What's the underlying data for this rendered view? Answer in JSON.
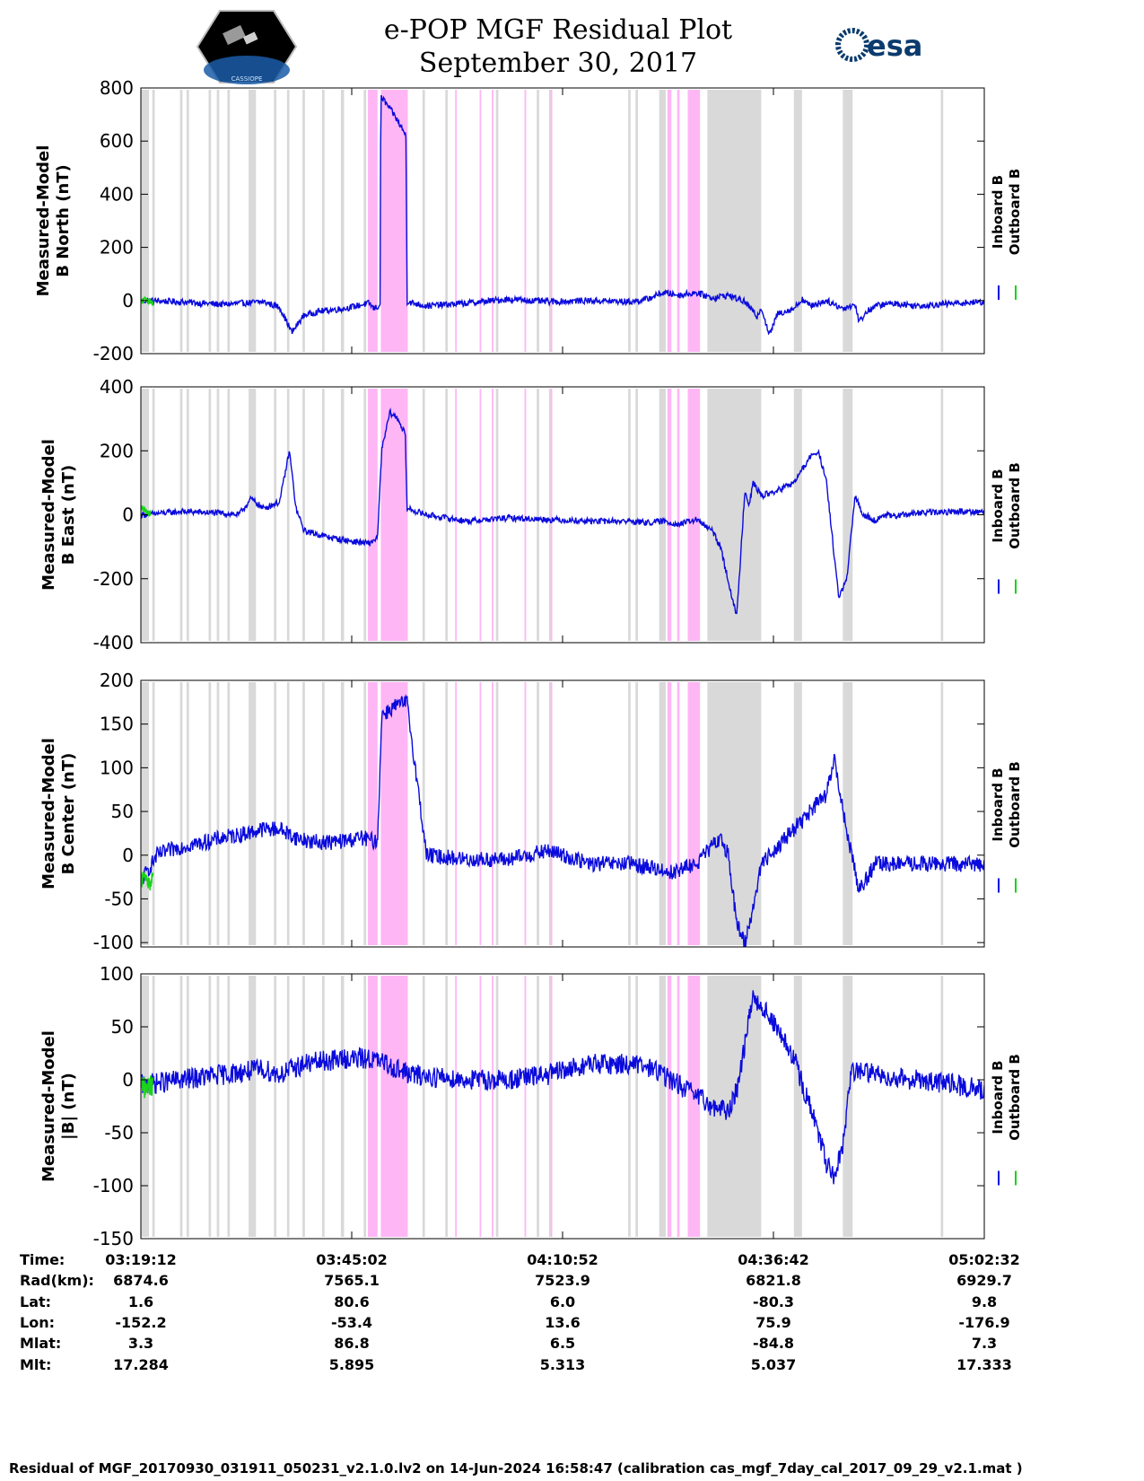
{
  "figure": {
    "title_line1": "e-POP MGF Residual Plot",
    "title_line2": "September 30, 2017",
    "logo_left_text": "CASSIOPE",
    "logo_right_text": "esa",
    "footer": "Residual of MGF_20170930_031911_050231_v2.1.0.lv2 on 14-Jun-2024 16:58:47 (calibration cas_mgf_7day_cal_2017_09_29_v2.1.mat )",
    "colors": {
      "inboard": "#0a0adc",
      "outboard": "#19d219",
      "gray_band": "#d9d9d9",
      "pink_band": "#ffb6f5"
    },
    "legend": {
      "inboard": "Inboard B",
      "outboard": "Outboard B"
    }
  },
  "time_table": {
    "row_labels": [
      "Time:",
      "Rad(km):",
      "Lat:",
      "Lon:",
      "Mlat:",
      "Mlt:"
    ],
    "columns": [
      {
        "Time": "03:19:12",
        "Rad": "6874.6",
        "Lat": "1.6",
        "Lon": "-152.2",
        "Mlat": "3.3",
        "Mlt": "17.284"
      },
      {
        "Time": "03:45:02",
        "Rad": "7565.1",
        "Lat": "80.6",
        "Lon": "-53.4",
        "Mlat": "86.8",
        "Mlt": "5.895"
      },
      {
        "Time": "04:10:52",
        "Rad": "7523.9",
        "Lat": "6.0",
        "Lon": "13.6",
        "Mlat": "6.5",
        "Mlt": "5.313"
      },
      {
        "Time": "04:36:42",
        "Rad": "6821.8",
        "Lat": "-80.3",
        "Lon": "75.9",
        "Mlat": "-84.8",
        "Mlt": "5.037"
      },
      {
        "Time": "05:02:32",
        "Rad": "6929.7",
        "Lat": "9.8",
        "Lon": "-176.9",
        "Mlat": "7.3",
        "Mlt": "17.333"
      }
    ]
  },
  "chart_data": [
    {
      "type": "line",
      "ylabel_line1": "Measured-Model",
      "ylabel_line2": "B North (nT)",
      "ylim": [
        -200,
        800
      ],
      "yticks": [
        -200,
        0,
        200,
        400,
        600,
        800
      ],
      "xlim_minutes": [
        0,
        103.33
      ],
      "x_ticks": [
        "03:19:12",
        "03:45:02",
        "04:10:52",
        "04:36:42",
        "05:02:32"
      ],
      "series": [
        {
          "name": "Inboard B",
          "x": [
            0,
            5,
            10,
            15,
            17,
            18.5,
            20,
            22,
            25,
            28,
            28.5,
            29.3,
            29.4,
            31,
            32.5,
            32.6,
            35,
            40,
            45,
            50,
            55,
            60,
            62,
            64,
            66,
            68,
            70,
            72,
            74,
            75.5,
            76,
            77,
            78,
            80,
            81,
            82,
            84,
            86,
            87.5,
            88,
            89,
            90,
            92,
            95,
            100,
            103.33
          ],
          "values": [
            0,
            -5,
            -15,
            -5,
            -25,
            -120,
            -55,
            -40,
            -30,
            -10,
            -30,
            -20,
            770,
            700,
            620,
            -5,
            -20,
            -10,
            5,
            -5,
            0,
            -5,
            5,
            30,
            20,
            30,
            10,
            20,
            -5,
            -60,
            -25,
            -130,
            -50,
            -30,
            5,
            -20,
            0,
            -30,
            -15,
            -80,
            -40,
            -20,
            -10,
            -20,
            -10,
            -5
          ]
        },
        {
          "name": "Outboard B",
          "x": [
            0,
            0.5,
            1,
            1.5
          ],
          "values": [
            -5,
            5,
            0,
            -8
          ]
        }
      ],
      "gray_intervals_minutes": [
        [
          0,
          1
        ],
        [
          1.4,
          1.7
        ],
        [
          4.8,
          5.1
        ],
        [
          5.6,
          5.9
        ],
        [
          8.3,
          8.6
        ],
        [
          9.3,
          9.6
        ],
        [
          10.6,
          10.9
        ],
        [
          13.2,
          14.1
        ],
        [
          16.3,
          16.6
        ],
        [
          17.9,
          18.2
        ],
        [
          19.8,
          20.1
        ],
        [
          22.2,
          22.5
        ],
        [
          24.5,
          24.9
        ],
        [
          27.3,
          27.6
        ],
        [
          31.2,
          31.5
        ],
        [
          34.5,
          34.8
        ],
        [
          37.3,
          37.6
        ],
        [
          43.5,
          43.8
        ],
        [
          48.5,
          48.8
        ],
        [
          50,
          50.3
        ],
        [
          59.7,
          60
        ],
        [
          60.6,
          60.9
        ],
        [
          63.5,
          64.3
        ],
        [
          69.4,
          75.9
        ],
        [
          73.5,
          76
        ],
        [
          80,
          81
        ],
        [
          86,
          87.2
        ],
        [
          98,
          98.3
        ]
      ],
      "pink_intervals_minutes": [
        [
          27.8,
          29
        ],
        [
          29.4,
          32.7
        ],
        [
          38.5,
          38.7
        ],
        [
          41.5,
          41.7
        ],
        [
          43,
          43.2
        ],
        [
          47,
          47.2
        ],
        [
          50.2,
          50.4
        ],
        [
          64.5,
          65
        ],
        [
          65.7,
          66
        ],
        [
          67,
          68.5
        ]
      ]
    },
    {
      "type": "line",
      "ylabel_line1": "Measured-Model",
      "ylabel_line2": "B East (nT)",
      "ylim": [
        -400,
        400
      ],
      "yticks": [
        -400,
        -200,
        0,
        200,
        400
      ],
      "xlim_minutes": [
        0,
        103.33
      ],
      "x_ticks": [
        "03:19:12",
        "03:45:02",
        "04:10:52",
        "04:36:42",
        "05:02:32"
      ],
      "series": [
        {
          "name": "Inboard B",
          "x": [
            0,
            5,
            10,
            12,
            13.5,
            15,
            17,
            18.2,
            19,
            20,
            23,
            25,
            28,
            29,
            29.5,
            30.5,
            31.5,
            32.4,
            32.6,
            35,
            40,
            45,
            50,
            55,
            60,
            62,
            64,
            66,
            68,
            70,
            71,
            73,
            74,
            74.5,
            75,
            76,
            77.5,
            80,
            82,
            83,
            84,
            85.5,
            86.5,
            87.5,
            88.5,
            89.5,
            90,
            91,
            92,
            95,
            100,
            103.33
          ],
          "values": [
            0,
            10,
            5,
            0,
            50,
            20,
            40,
            200,
            20,
            -50,
            -70,
            -80,
            -90,
            -70,
            200,
            320,
            300,
            250,
            20,
            0,
            -20,
            -10,
            -15,
            -20,
            -20,
            -25,
            -20,
            -30,
            -15,
            -50,
            -100,
            -320,
            80,
            30,
            100,
            60,
            70,
            100,
            180,
            200,
            100,
            -260,
            -200,
            60,
            0,
            -10,
            -20,
            0,
            -5,
            5,
            10,
            10
          ]
        },
        {
          "name": "Outboard B",
          "x": [
            0,
            0.6,
            1.2
          ],
          "values": [
            25,
            10,
            0
          ]
        }
      ],
      "gray_intervals_minutes": [
        [
          0,
          1
        ],
        [
          1.4,
          1.7
        ],
        [
          4.8,
          5.1
        ],
        [
          5.6,
          5.9
        ],
        [
          8.3,
          8.6
        ],
        [
          9.3,
          9.6
        ],
        [
          10.6,
          10.9
        ],
        [
          13.2,
          14.1
        ],
        [
          16.3,
          16.6
        ],
        [
          17.9,
          18.2
        ],
        [
          19.8,
          20.1
        ],
        [
          22.2,
          22.5
        ],
        [
          24.5,
          24.9
        ],
        [
          27.3,
          27.6
        ],
        [
          31.2,
          31.5
        ],
        [
          34.5,
          34.8
        ],
        [
          37.3,
          37.6
        ],
        [
          43.5,
          43.8
        ],
        [
          48.5,
          48.8
        ],
        [
          50,
          50.3
        ],
        [
          59.7,
          60
        ],
        [
          60.6,
          60.9
        ],
        [
          63.5,
          64.3
        ],
        [
          69.4,
          75.9
        ],
        [
          73.5,
          76
        ],
        [
          80,
          81
        ],
        [
          86,
          87.2
        ],
        [
          98,
          98.3
        ]
      ],
      "pink_intervals_minutes": [
        [
          27.8,
          29
        ],
        [
          29.4,
          32.7
        ],
        [
          38.5,
          38.7
        ],
        [
          41.5,
          41.7
        ],
        [
          43,
          43.2
        ],
        [
          47,
          47.2
        ],
        [
          50.2,
          50.4
        ],
        [
          64.5,
          65
        ],
        [
          65.7,
          66
        ],
        [
          67,
          68.5
        ]
      ]
    },
    {
      "type": "line",
      "ylabel_line1": "Measured-Model",
      "ylabel_line2": "B Center (nT)",
      "ylim": [
        -105,
        200
      ],
      "yticks": [
        -100,
        -50,
        0,
        50,
        100,
        150,
        200
      ],
      "xlim_minutes": [
        0,
        103.33
      ],
      "x_ticks": [
        "03:19:12",
        "03:45:02",
        "04:10:52",
        "04:36:42",
        "05:02:32"
      ],
      "series": [
        {
          "name": "Inboard B",
          "x": [
            0,
            2,
            5,
            8,
            10,
            13,
            15,
            17,
            19,
            21,
            24,
            27,
            29,
            29.5,
            31,
            32.6,
            35,
            40,
            45,
            50,
            55,
            60,
            63,
            65,
            68,
            70,
            71,
            72,
            73,
            74,
            75,
            76,
            78,
            80,
            82,
            84,
            85,
            86,
            88,
            90,
            92,
            95,
            100,
            103.33
          ],
          "values": [
            -30,
            0,
            10,
            15,
            20,
            25,
            30,
            30,
            20,
            15,
            15,
            20,
            15,
            160,
            170,
            175,
            0,
            -5,
            -5,
            5,
            -10,
            -10,
            -15,
            -20,
            -10,
            10,
            20,
            0,
            -80,
            -100,
            -60,
            -10,
            10,
            30,
            50,
            70,
            110,
            50,
            -40,
            -10,
            -10,
            -10,
            -10,
            -10
          ]
        },
        {
          "name": "Outboard B",
          "x": [
            0,
            0.5,
            1,
            1.5
          ],
          "values": [
            -30,
            -20,
            -35,
            -25
          ]
        }
      ],
      "gray_intervals_minutes": [
        [
          0,
          1
        ],
        [
          1.4,
          1.7
        ],
        [
          4.8,
          5.1
        ],
        [
          5.6,
          5.9
        ],
        [
          8.3,
          8.6
        ],
        [
          9.3,
          9.6
        ],
        [
          10.6,
          10.9
        ],
        [
          13.2,
          14.1
        ],
        [
          16.3,
          16.6
        ],
        [
          17.9,
          18.2
        ],
        [
          19.8,
          20.1
        ],
        [
          22.2,
          22.5
        ],
        [
          24.5,
          24.9
        ],
        [
          27.3,
          27.6
        ],
        [
          31.2,
          31.5
        ],
        [
          34.5,
          34.8
        ],
        [
          37.3,
          37.6
        ],
        [
          43.5,
          43.8
        ],
        [
          48.5,
          48.8
        ],
        [
          50,
          50.3
        ],
        [
          59.7,
          60
        ],
        [
          60.6,
          60.9
        ],
        [
          63.5,
          64.3
        ],
        [
          69.4,
          75.9
        ],
        [
          73.5,
          76
        ],
        [
          80,
          81
        ],
        [
          86,
          87.2
        ],
        [
          98,
          98.3
        ]
      ],
      "pink_intervals_minutes": [
        [
          27.8,
          29
        ],
        [
          29.4,
          32.7
        ],
        [
          38.5,
          38.7
        ],
        [
          41.5,
          41.7
        ],
        [
          43,
          43.2
        ],
        [
          47,
          47.2
        ],
        [
          50.2,
          50.4
        ],
        [
          64.5,
          65
        ],
        [
          65.7,
          66
        ],
        [
          67,
          68.5
        ]
      ]
    },
    {
      "type": "line",
      "ylabel_line1": "Measured-Model",
      "ylabel_line2": "|B| (nT)",
      "ylim": [
        -150,
        100
      ],
      "yticks": [
        -150,
        -100,
        -50,
        0,
        50,
        100
      ],
      "xlim_minutes": [
        0,
        103.33
      ],
      "x_ticks": [
        "03:19:12",
        "03:45:02",
        "04:10:52",
        "04:36:42",
        "05:02:32"
      ],
      "series": [
        {
          "name": "Inboard B",
          "x": [
            0,
            5,
            10,
            15,
            17,
            20,
            25,
            28,
            30,
            33,
            40,
            45,
            50,
            55,
            60,
            63,
            65,
            68,
            70,
            72,
            73,
            75,
            77,
            80,
            83,
            84,
            85,
            86,
            87,
            88,
            90,
            95,
            100,
            103.33
          ],
          "values": [
            -5,
            0,
            5,
            10,
            5,
            15,
            20,
            20,
            15,
            5,
            0,
            0,
            5,
            15,
            15,
            10,
            0,
            -15,
            -25,
            -30,
            -10,
            80,
            60,
            20,
            -50,
            -80,
            -95,
            -60,
            5,
            10,
            5,
            0,
            -5,
            -10
          ]
        },
        {
          "name": "Outboard B",
          "x": [
            0,
            0.5,
            1,
            1.5
          ],
          "values": [
            -5,
            -8,
            -4,
            -6
          ]
        }
      ],
      "gray_intervals_minutes": [
        [
          0,
          1
        ],
        [
          1.4,
          1.7
        ],
        [
          4.8,
          5.1
        ],
        [
          5.6,
          5.9
        ],
        [
          8.3,
          8.6
        ],
        [
          9.3,
          9.6
        ],
        [
          10.6,
          10.9
        ],
        [
          13.2,
          14.1
        ],
        [
          16.3,
          16.6
        ],
        [
          17.9,
          18.2
        ],
        [
          19.8,
          20.1
        ],
        [
          22.2,
          22.5
        ],
        [
          24.5,
          24.9
        ],
        [
          27.3,
          27.6
        ],
        [
          31.2,
          31.5
        ],
        [
          34.5,
          34.8
        ],
        [
          37.3,
          37.6
        ],
        [
          43.5,
          43.8
        ],
        [
          48.5,
          48.8
        ],
        [
          50,
          50.3
        ],
        [
          59.7,
          60
        ],
        [
          60.6,
          60.9
        ],
        [
          63.5,
          64.3
        ],
        [
          69.4,
          75.9
        ],
        [
          73.5,
          76
        ],
        [
          80,
          81
        ],
        [
          86,
          87.2
        ],
        [
          98,
          98.3
        ]
      ],
      "pink_intervals_minutes": [
        [
          27.8,
          29
        ],
        [
          29.4,
          32.7
        ],
        [
          38.5,
          38.7
        ],
        [
          41.5,
          41.7
        ],
        [
          43,
          43.2
        ],
        [
          47,
          47.2
        ],
        [
          50.2,
          50.4
        ],
        [
          64.5,
          65
        ],
        [
          65.7,
          66
        ],
        [
          67,
          68.5
        ]
      ]
    }
  ]
}
